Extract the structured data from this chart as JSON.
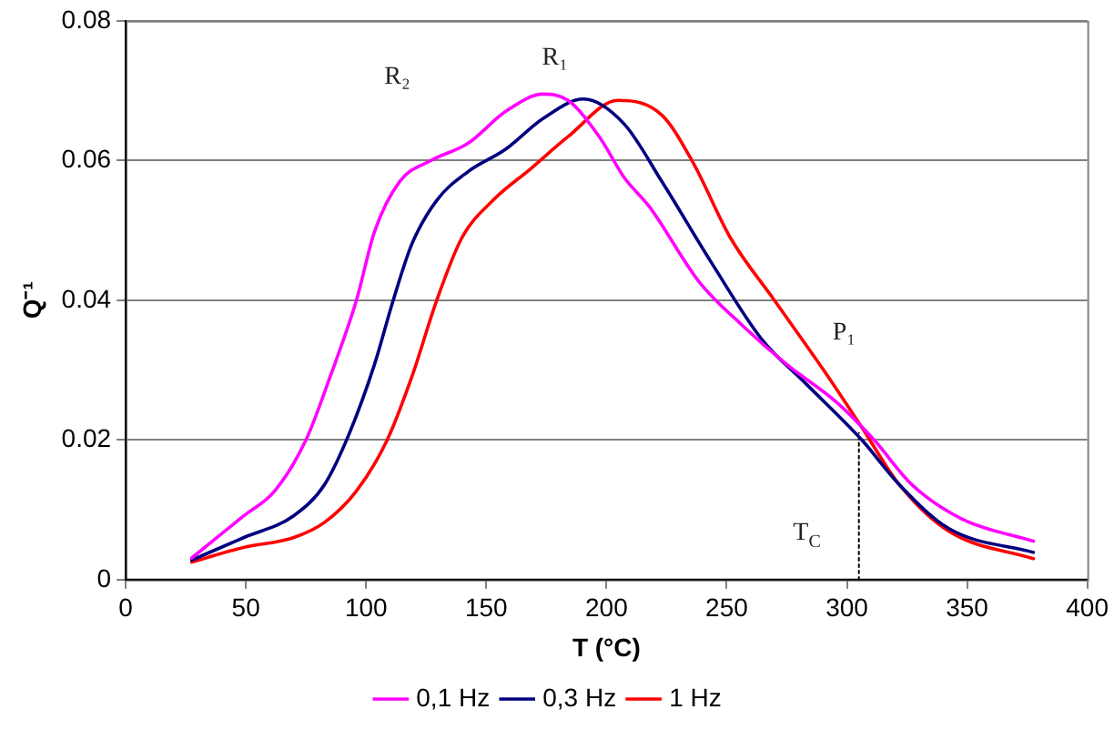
{
  "chart_data": {
    "type": "line",
    "xlabel": "T (°C)",
    "ylabel": "Q⁻¹",
    "xlim": [
      0,
      400
    ],
    "xticks": [
      0,
      50,
      100,
      150,
      200,
      250,
      300,
      350,
      400
    ],
    "ylim": [
      0,
      0.08
    ],
    "yticks": [
      0,
      0.02,
      0.04,
      0.06,
      0.08
    ],
    "grid": "y",
    "legend": "bottom",
    "marker": "none",
    "line_style": "solid",
    "series": [
      {
        "name": "0,1 Hz",
        "color": "#ff00ff",
        "x": [
          27.5,
          49,
          62,
          75,
          85,
          96,
          103.5,
          114,
          127,
          142.6,
          158,
          173.6,
          184,
          197,
          207.5,
          217.8,
          238.6,
          256.8,
          275,
          295.7,
          311.3,
          327,
          347.8,
          377.6
        ],
        "values": [
          0.0031,
          0.0091,
          0.0127,
          0.02,
          0.029,
          0.04,
          0.0498,
          0.057,
          0.06,
          0.0625,
          0.067,
          0.0695,
          0.0686,
          0.0634,
          0.0575,
          0.0534,
          0.0426,
          0.0363,
          0.0308,
          0.0254,
          0.02,
          0.0136,
          0.0087,
          0.0055
        ]
      },
      {
        "name": "0,3 Hz",
        "color": "#000080",
        "x": [
          27.5,
          49,
          69.7,
          82.7,
          93,
          103.5,
          111.3,
          119,
          129.4,
          142.4,
          158,
          173.6,
          190.5,
          207.4,
          223,
          243.8,
          264.6,
          282.8,
          306.2,
          321.8,
          342.5,
          377.6
        ],
        "values": [
          0.0028,
          0.006,
          0.0091,
          0.0136,
          0.0209,
          0.0308,
          0.04,
          0.048,
          0.0543,
          0.0584,
          0.0616,
          0.066,
          0.0688,
          0.0652,
          0.057,
          0.0453,
          0.0344,
          0.0281,
          0.02,
          0.0136,
          0.0073,
          0.0039
        ]
      },
      {
        "name": "1 Hz",
        "color": "#ff0000",
        "x": [
          27.5,
          49,
          69.7,
          82.7,
          96,
          108.8,
          119,
          129.4,
          139.8,
          152.8,
          168.4,
          184,
          204.8,
          223,
          236,
          251.6,
          269.8,
          290.5,
          306.2,
          321.8,
          342.5,
          377.6
        ],
        "values": [
          0.0025,
          0.0046,
          0.006,
          0.0082,
          0.0127,
          0.02,
          0.029,
          0.04,
          0.0489,
          0.0543,
          0.0588,
          0.0634,
          0.0686,
          0.0665,
          0.0597,
          0.0489,
          0.04,
          0.0299,
          0.0218,
          0.0136,
          0.0069,
          0.003
        ]
      },
      {
        "type": "line",
        "color": "#000000",
        "line_style": "dotted",
        "x": [
          305,
          305
        ],
        "values": [
          0,
          0.021
        ]
      }
    ],
    "annotations": [
      "R₂",
      "R₁",
      "P₁",
      "T$_{C}$"
    ]
  }
}
